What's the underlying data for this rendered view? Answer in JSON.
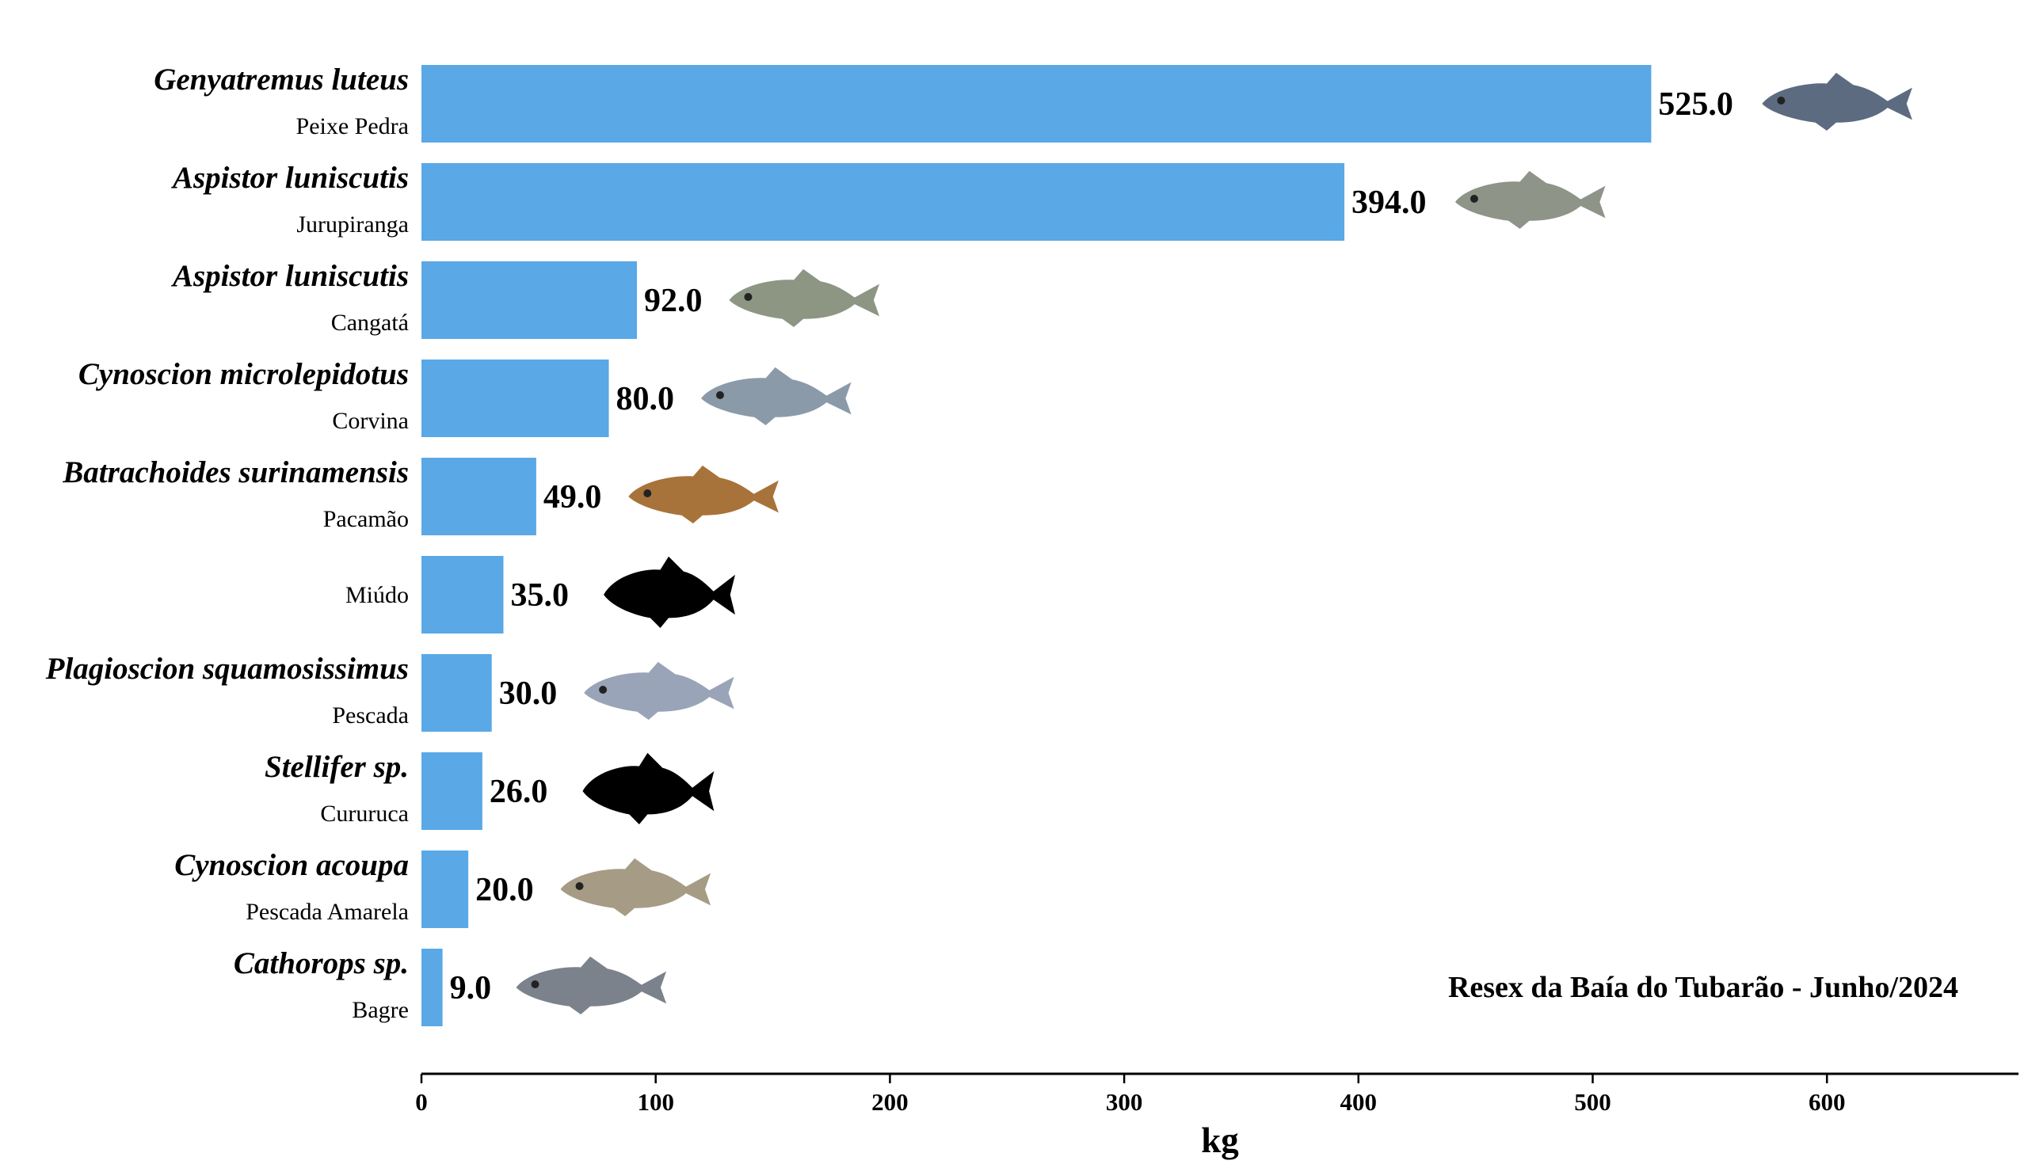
{
  "chart_data": {
    "type": "bar",
    "orientation": "horizontal",
    "xlabel": "kg",
    "xlim": [
      0,
      680
    ],
    "xticks": [
      0,
      100,
      200,
      300,
      400,
      500,
      600
    ],
    "annotation": "Resex da Baía do Tubarão - Junho/2024",
    "bar_color": "#5AA8E6",
    "grid": false,
    "categories": [
      {
        "scientific": "Genyatremus luteus",
        "common": "Peixe Pedra",
        "value": 525.0,
        "value_label": "525.0",
        "icon": "fish-photo-peixe-pedra-icon",
        "tint": "#5d6b80"
      },
      {
        "scientific": "Aspistor luniscutis",
        "common": "Jurupiranga",
        "value": 394.0,
        "value_label": "394.0",
        "icon": "fish-photo-jurupiranga-icon",
        "tint": "#8f9489"
      },
      {
        "scientific": "Aspistor luniscutis",
        "common": "Cangatá",
        "value": 92.0,
        "value_label": "92.0",
        "icon": "fish-photo-cangata-icon",
        "tint": "#8c9683"
      },
      {
        "scientific": "Cynoscion microlepidotus",
        "common": "Corvina",
        "value": 80.0,
        "value_label": "80.0",
        "icon": "fish-photo-corvina-icon",
        "tint": "#8a9aa8"
      },
      {
        "scientific": "Batrachoides surinamensis",
        "common": "Pacamão",
        "value": 49.0,
        "value_label": "49.0",
        "icon": "fish-photo-pacamao-icon",
        "tint": "#a8733a"
      },
      {
        "scientific": "",
        "common": "Miúdo",
        "value": 35.0,
        "value_label": "35.0",
        "icon": "fish-silhouette-icon",
        "tint": "#000000"
      },
      {
        "scientific": "Plagioscion squamosissimus",
        "common": "Pescada",
        "value": 30.0,
        "value_label": "30.0",
        "icon": "fish-photo-pescada-icon",
        "tint": "#9aa4b8"
      },
      {
        "scientific": "Stellifer sp.",
        "common": "Cururuca",
        "value": 26.0,
        "value_label": "26.0",
        "icon": "fish-silhouette-icon",
        "tint": "#000000"
      },
      {
        "scientific": "Cynoscion acoupa",
        "common": "Pescada Amarela",
        "value": 20.0,
        "value_label": "20.0",
        "icon": "fish-photo-pescada-amarela-icon",
        "tint": "#a69c85"
      },
      {
        "scientific": "Cathorops sp.",
        "common": "Bagre",
        "value": 9.0,
        "value_label": "9.0",
        "icon": "fish-photo-bagre-icon",
        "tint": "#7c828c"
      }
    ]
  }
}
